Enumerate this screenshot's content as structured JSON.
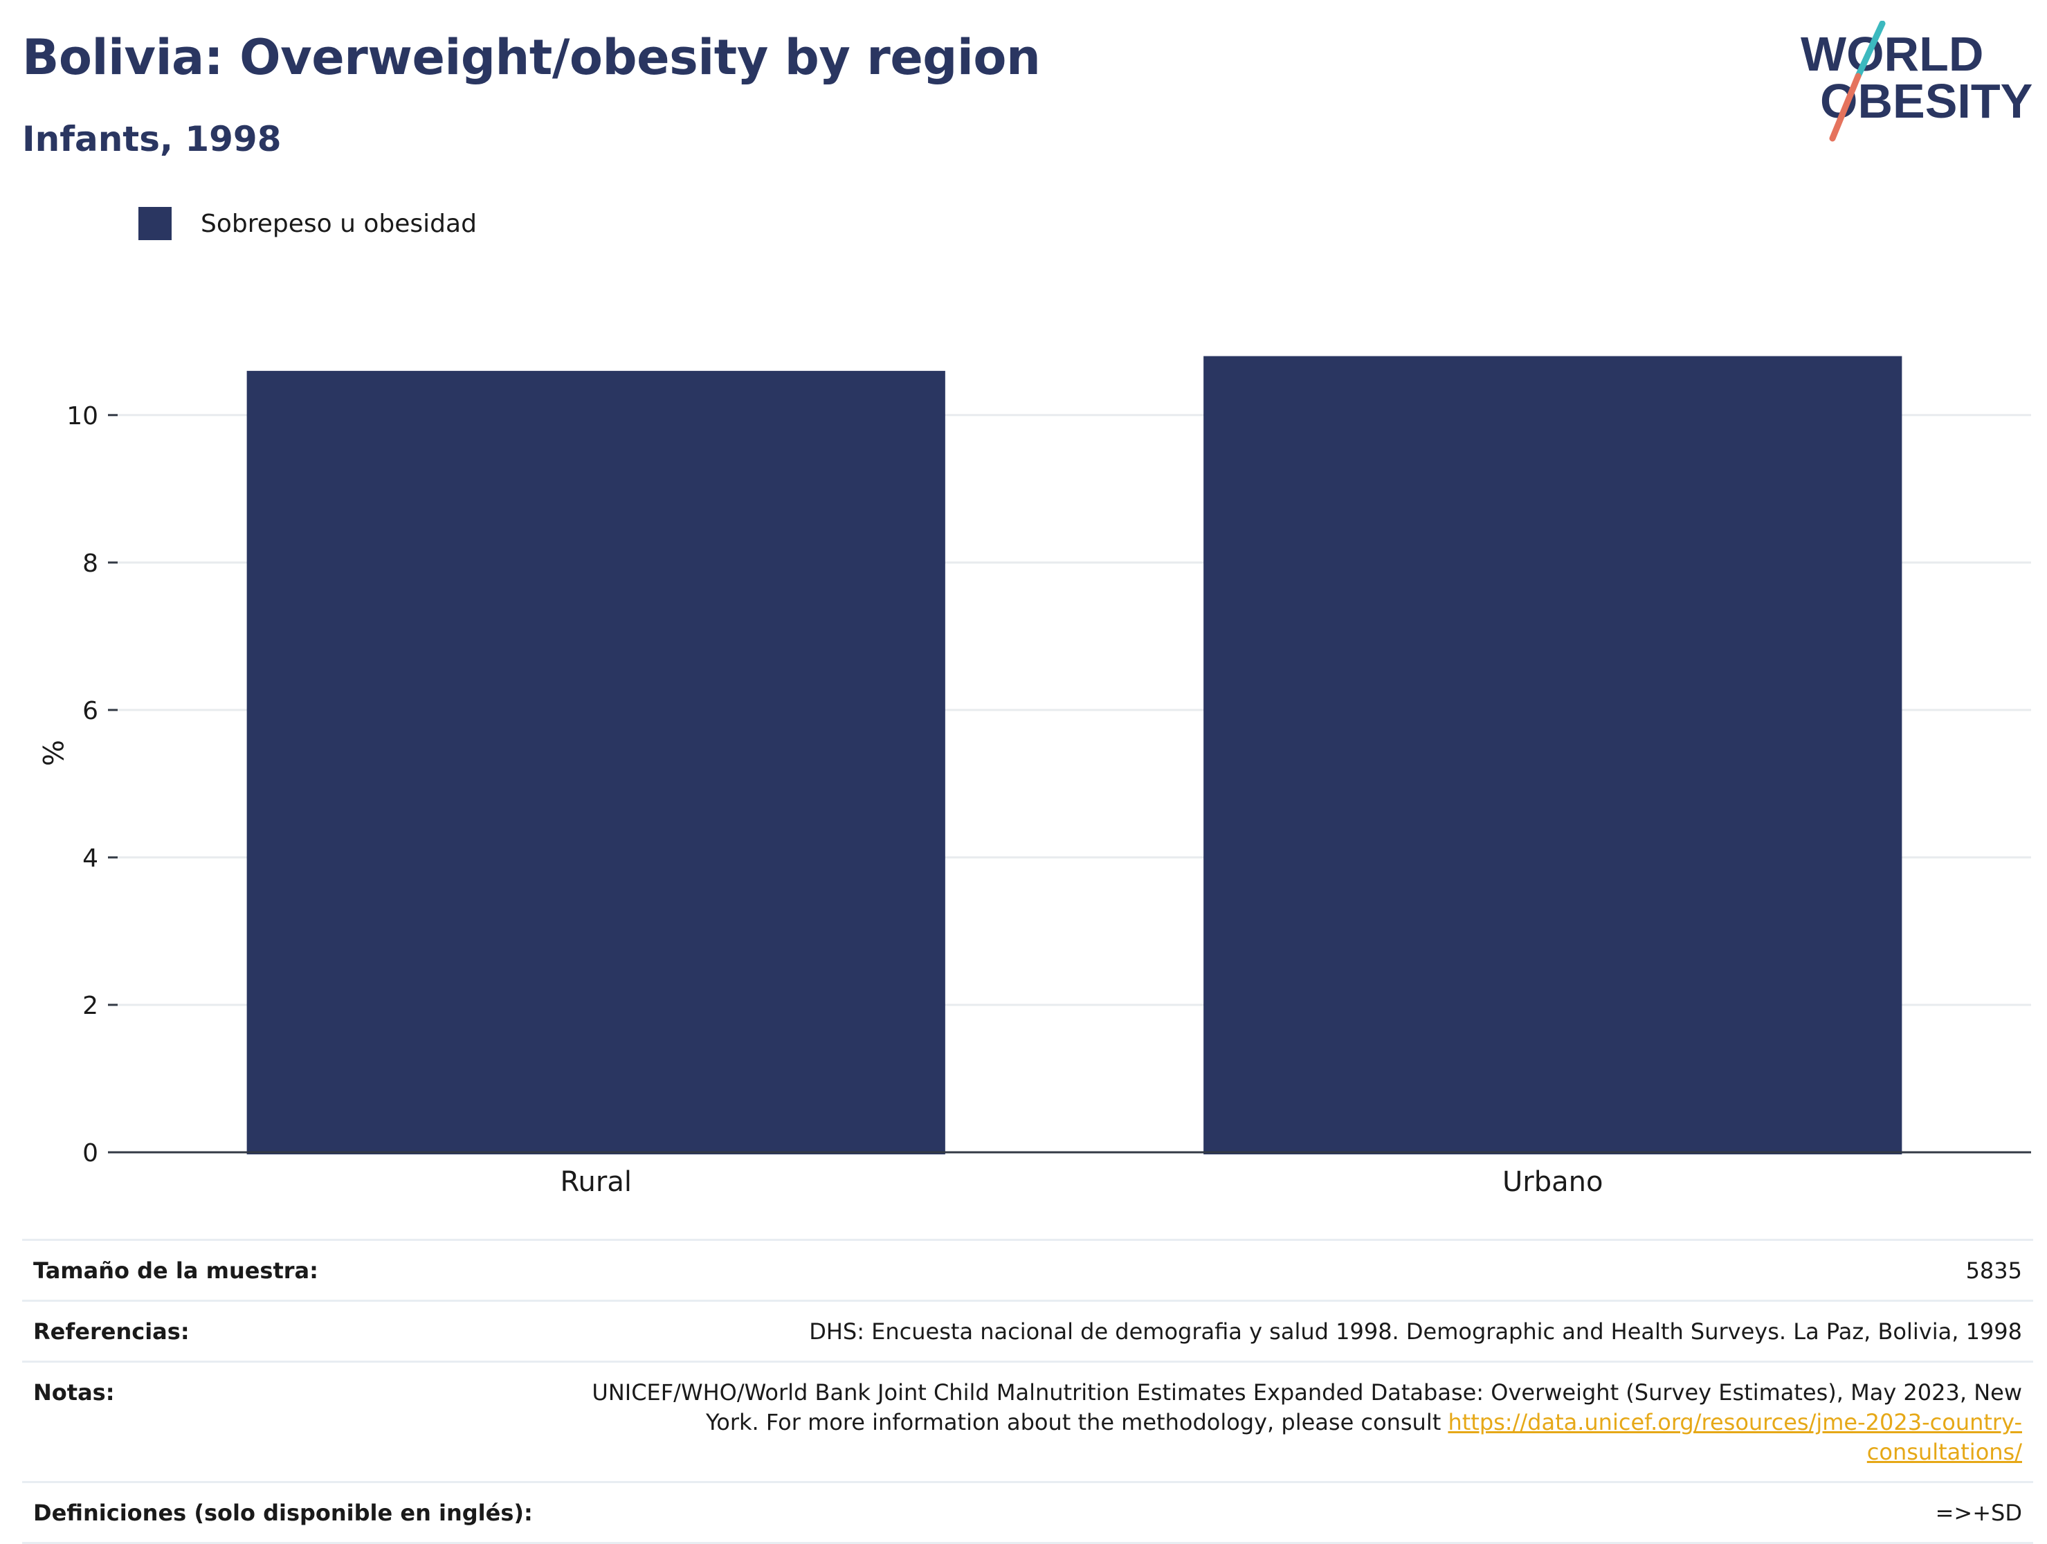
{
  "title": "Bolivia: Overweight/obesity by region",
  "subtitle": "Infants, 1998",
  "logo": {
    "line1": "WORLD",
    "line2": "OBESITY"
  },
  "legend": {
    "label": "Sobrepeso u obesidad",
    "color": "#2a3661"
  },
  "chart_data": {
    "type": "bar",
    "categories": [
      "Rural",
      "Urbano"
    ],
    "series": [
      {
        "name": "Sobrepeso u obesidad",
        "values": [
          10.6,
          10.8
        ],
        "color": "#2a3661"
      }
    ],
    "ylabel": "%",
    "xlabel": "",
    "ylim": [
      0,
      11.5
    ],
    "yticks": [
      0,
      2,
      4,
      6,
      8,
      10
    ],
    "grid": true,
    "legend_position": "top-left"
  },
  "info": {
    "sample_size": {
      "label": "Tamaño de la muestra:",
      "value": "5835"
    },
    "references": {
      "label": "Referencias:",
      "value": "DHS: Encuesta nacional de demografia y salud 1998. Demographic and Health Surveys. La Paz, Bolivia, 1998"
    },
    "notes": {
      "label": "Notas:",
      "value_line1": "UNICEF/WHO/World Bank Joint Child Malnutrition Estimates Expanded Database: Overweight (Survey Estimates), May 2023, New",
      "value_line2": "York. For more information about the methodology, please consult",
      "link": "https://data.unicef.org/resources/jme-2023-country-consultations/"
    },
    "definitions": {
      "label": "Definiciones (solo disponible en inglés):",
      "value": "=>+SD"
    }
  },
  "colors": {
    "accent": "#2a3661",
    "link": "#e6a817",
    "logo_teal": "#3cb9bf",
    "logo_coral": "#e5735d"
  }
}
